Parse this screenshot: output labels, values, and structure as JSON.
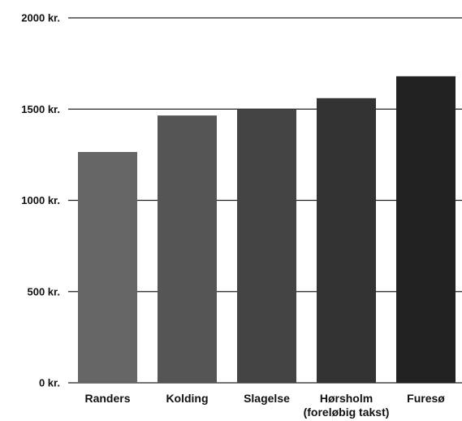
{
  "chart_data": {
    "type": "bar",
    "title": "",
    "xlabel": "",
    "ylabel": "",
    "categories": [
      [
        "Randers"
      ],
      [
        "Kolding"
      ],
      [
        "Slagelse"
      ],
      [
        "Hørsholm",
        "(foreløbig takst)"
      ],
      [
        "Furesø"
      ]
    ],
    "values": [
      1265,
      1465,
      1500,
      1560,
      1680
    ],
    "ylim": [
      0,
      2000
    ],
    "yticks": [
      0,
      500,
      1000,
      1500,
      2000
    ],
    "ytick_labels": [
      "0 kr.",
      "500 kr.",
      "1000 kr.",
      "1500 kr.",
      "2000 kr."
    ],
    "bar_colors": [
      "#666666",
      "#555555",
      "#444444",
      "#333333",
      "#222222"
    ],
    "grid": true,
    "legend": "none"
  }
}
